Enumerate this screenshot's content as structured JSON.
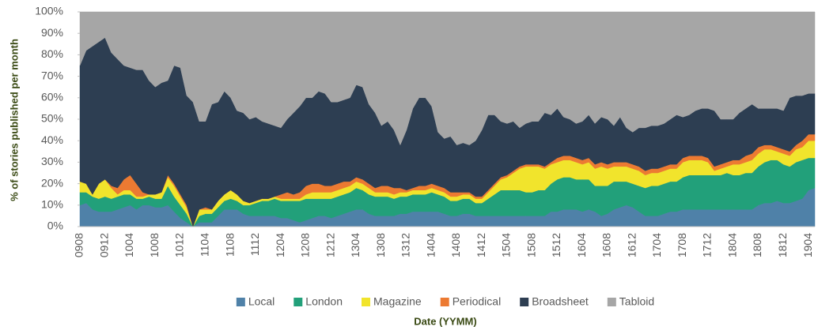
{
  "chart_data": {
    "type": "area",
    "stacked": true,
    "ylabel": "% of stories published  per month",
    "xlabel": "Date (YYMM)",
    "ylim": [
      0,
      100
    ],
    "yticks": [
      {
        "value": 0,
        "label": "0%"
      },
      {
        "value": 10,
        "label": "10%"
      },
      {
        "value": 20,
        "label": "20%"
      },
      {
        "value": 30,
        "label": "30%"
      },
      {
        "value": 40,
        "label": "40%"
      },
      {
        "value": 50,
        "label": "50%"
      },
      {
        "value": 60,
        "label": "60%"
      },
      {
        "value": 70,
        "label": "70%"
      },
      {
        "value": 80,
        "label": "80%"
      },
      {
        "value": 90,
        "label": "90%"
      },
      {
        "value": 100,
        "label": "100%"
      }
    ],
    "legend": "bottom",
    "categories": [
      "0908",
      null,
      null,
      null,
      "0912",
      null,
      null,
      null,
      "1004",
      null,
      null,
      null,
      "1008",
      null,
      null,
      null,
      "1012",
      null,
      null,
      null,
      "1104",
      null,
      null,
      null,
      "1108",
      null,
      null,
      null,
      "1112",
      null,
      null,
      null,
      "1204",
      null,
      null,
      null,
      "1208",
      null,
      null,
      null,
      "1212",
      null,
      null,
      null,
      "1304",
      null,
      null,
      null,
      "1308",
      null,
      null,
      null,
      "1312",
      null,
      null,
      null,
      "1404",
      null,
      null,
      null,
      "1408",
      null,
      null,
      null,
      "1412",
      null,
      null,
      null,
      "1504",
      null,
      null,
      null,
      "1508",
      null,
      null,
      null,
      "1512",
      null,
      null,
      null,
      "1604",
      null,
      null,
      null,
      "1608",
      null,
      null,
      null,
      "1612",
      null,
      null,
      null,
      "1704",
      null,
      null,
      null,
      "1708",
      null,
      null,
      null,
      "1712",
      null,
      null,
      null,
      "1804",
      null,
      null,
      null,
      "1808",
      null,
      null,
      null,
      "1812",
      null,
      null,
      null,
      "1904",
      null
    ],
    "series": [
      {
        "name": "Local",
        "color": "#4f81a8",
        "values": [
          10,
          11,
          8,
          7,
          7,
          7,
          8,
          9,
          10,
          8,
          10,
          10,
          9,
          9,
          10,
          7,
          4,
          2,
          0,
          2,
          2,
          2,
          5,
          8,
          8,
          8,
          6,
          5,
          5,
          5,
          5,
          5,
          4,
          4,
          3,
          2,
          3,
          4,
          5,
          5,
          4,
          5,
          6,
          7,
          8,
          8,
          6,
          5,
          5,
          5,
          5,
          6,
          6,
          7,
          7,
          7,
          7,
          7,
          6,
          5,
          5,
          6,
          6,
          5,
          5,
          5,
          5,
          5,
          5,
          5,
          5,
          5,
          5,
          5,
          5,
          7,
          7,
          8,
          8,
          8,
          7,
          8,
          7,
          5,
          6,
          8,
          9,
          10,
          9,
          7,
          5,
          5,
          5,
          6,
          7,
          7,
          8,
          8,
          8,
          8,
          8,
          8,
          8,
          8,
          8,
          8,
          8,
          8,
          10,
          11,
          11,
          12,
          11,
          11,
          12,
          13,
          17,
          18
        ]
      },
      {
        "name": "London",
        "color": "#22a07a",
        "values": [
          6,
          5,
          6,
          6,
          7,
          6,
          6,
          6,
          5,
          5,
          3,
          4,
          4,
          4,
          9,
          7,
          6,
          4,
          0,
          3,
          4,
          4,
          4,
          4,
          5,
          4,
          4,
          5,
          6,
          7,
          7,
          8,
          8,
          8,
          9,
          10,
          10,
          9,
          8,
          8,
          9,
          9,
          9,
          9,
          10,
          9,
          9,
          9,
          9,
          9,
          8,
          8,
          8,
          8,
          8,
          8,
          9,
          8,
          8,
          7,
          7,
          7,
          7,
          6,
          6,
          8,
          10,
          12,
          12,
          12,
          12,
          11,
          11,
          12,
          12,
          13,
          15,
          15,
          15,
          14,
          15,
          14,
          12,
          14,
          13,
          13,
          12,
          11,
          11,
          12,
          13,
          14,
          14,
          14,
          14,
          14,
          15,
          16,
          16,
          16,
          16,
          16,
          16,
          17,
          16,
          16,
          17,
          17,
          18,
          19,
          20,
          19,
          18,
          17,
          18,
          18,
          15,
          14
        ]
      },
      {
        "name": "Magazine",
        "color": "#f1e42c",
        "values": [
          5,
          4,
          1,
          7,
          8,
          5,
          1,
          2,
          2,
          1,
          1,
          1,
          2,
          3,
          4,
          5,
          4,
          3,
          0,
          3,
          2,
          2,
          3,
          3,
          4,
          3,
          2,
          1,
          1,
          1,
          1,
          1,
          1,
          1,
          1,
          1,
          2,
          3,
          3,
          3,
          3,
          3,
          3,
          3,
          3,
          3,
          3,
          2,
          2,
          2,
          2,
          2,
          2,
          2,
          2,
          2,
          2,
          2,
          2,
          2,
          2,
          2,
          2,
          2,
          2,
          3,
          4,
          5,
          6,
          8,
          10,
          12,
          12,
          11,
          10,
          9,
          8,
          8,
          8,
          8,
          7,
          8,
          8,
          9,
          8,
          7,
          7,
          7,
          7,
          7,
          6,
          6,
          6,
          6,
          6,
          6,
          7,
          7,
          7,
          7,
          6,
          2,
          3,
          3,
          5,
          5,
          5,
          6,
          6,
          6,
          5,
          4,
          5,
          5,
          6,
          6,
          8,
          8
        ]
      },
      {
        "name": "Periodical",
        "color": "#ec7a32",
        "values": [
          0,
          0,
          0,
          0,
          0,
          1,
          3,
          5,
          7,
          6,
          2,
          0,
          0,
          0,
          1,
          1,
          1,
          1,
          0,
          0,
          1,
          0,
          0,
          0,
          0,
          0,
          0,
          0,
          0,
          0,
          0,
          0,
          2,
          3,
          2,
          3,
          4,
          4,
          4,
          3,
          3,
          3,
          3,
          2,
          2,
          2,
          2,
          2,
          3,
          3,
          3,
          2,
          1,
          1,
          2,
          2,
          2,
          2,
          2,
          2,
          2,
          1,
          1,
          1,
          1,
          1,
          1,
          1,
          1,
          1,
          1,
          1,
          1,
          1,
          1,
          1,
          2,
          2,
          2,
          2,
          2,
          2,
          2,
          2,
          2,
          2,
          2,
          2,
          2,
          2,
          2,
          2,
          2,
          2,
          2,
          2,
          2,
          2,
          2,
          2,
          2,
          2,
          2,
          2,
          2,
          2,
          3,
          3,
          3,
          2,
          2,
          2,
          2,
          2,
          2,
          3,
          3,
          3
        ]
      },
      {
        "name": "Broadsheet",
        "color": "#2d3e52",
        "values": [
          54,
          62,
          69,
          66,
          66,
          62,
          60,
          53,
          50,
          53,
          57,
          53,
          50,
          51,
          44,
          55,
          59,
          51,
          58,
          41,
          40,
          49,
          46,
          48,
          43,
          39,
          41,
          39,
          39,
          36,
          35,
          33,
          31,
          34,
          38,
          40,
          41,
          40,
          43,
          43,
          39,
          38,
          38,
          39,
          43,
          43,
          37,
          35,
          28,
          30,
          27,
          20,
          28,
          37,
          41,
          41,
          36,
          25,
          23,
          26,
          22,
          23,
          22,
          26,
          31,
          35,
          32,
          26,
          24,
          23,
          18,
          19,
          20,
          20,
          25,
          22,
          23,
          18,
          17,
          16,
          18,
          20,
          19,
          21,
          21,
          17,
          21,
          16,
          15,
          18,
          20,
          20,
          20,
          20,
          21,
          23,
          19,
          19,
          21,
          22,
          23,
          26,
          21,
          20,
          19,
          22,
          22,
          23,
          18,
          17,
          17,
          18,
          18,
          25,
          23,
          21,
          19,
          19
        ]
      },
      {
        "name": "Tabloid",
        "color": "#a6a6a6",
        "values": [
          25,
          18,
          16,
          14,
          12,
          19,
          22,
          25,
          26,
          27,
          27,
          32,
          35,
          33,
          32,
          25,
          26,
          39,
          42,
          51,
          51,
          43,
          42,
          37,
          40,
          46,
          47,
          50,
          49,
          51,
          52,
          53,
          54,
          50,
          47,
          44,
          40,
          40,
          37,
          38,
          42,
          42,
          41,
          40,
          34,
          35,
          43,
          47,
          53,
          51,
          55,
          62,
          55,
          45,
          40,
          40,
          44,
          56,
          59,
          58,
          62,
          61,
          62,
          60,
          55,
          48,
          48,
          51,
          52,
          51,
          54,
          52,
          51,
          51,
          47,
          48,
          45,
          49,
          50,
          52,
          51,
          48,
          52,
          49,
          50,
          53,
          49,
          54,
          56,
          54,
          54,
          53,
          53,
          52,
          50,
          48,
          49,
          48,
          46,
          45,
          45,
          46,
          50,
          50,
          50,
          47,
          45,
          43,
          45,
          45,
          45,
          45,
          46,
          40,
          39,
          39,
          38,
          38
        ]
      }
    ]
  }
}
